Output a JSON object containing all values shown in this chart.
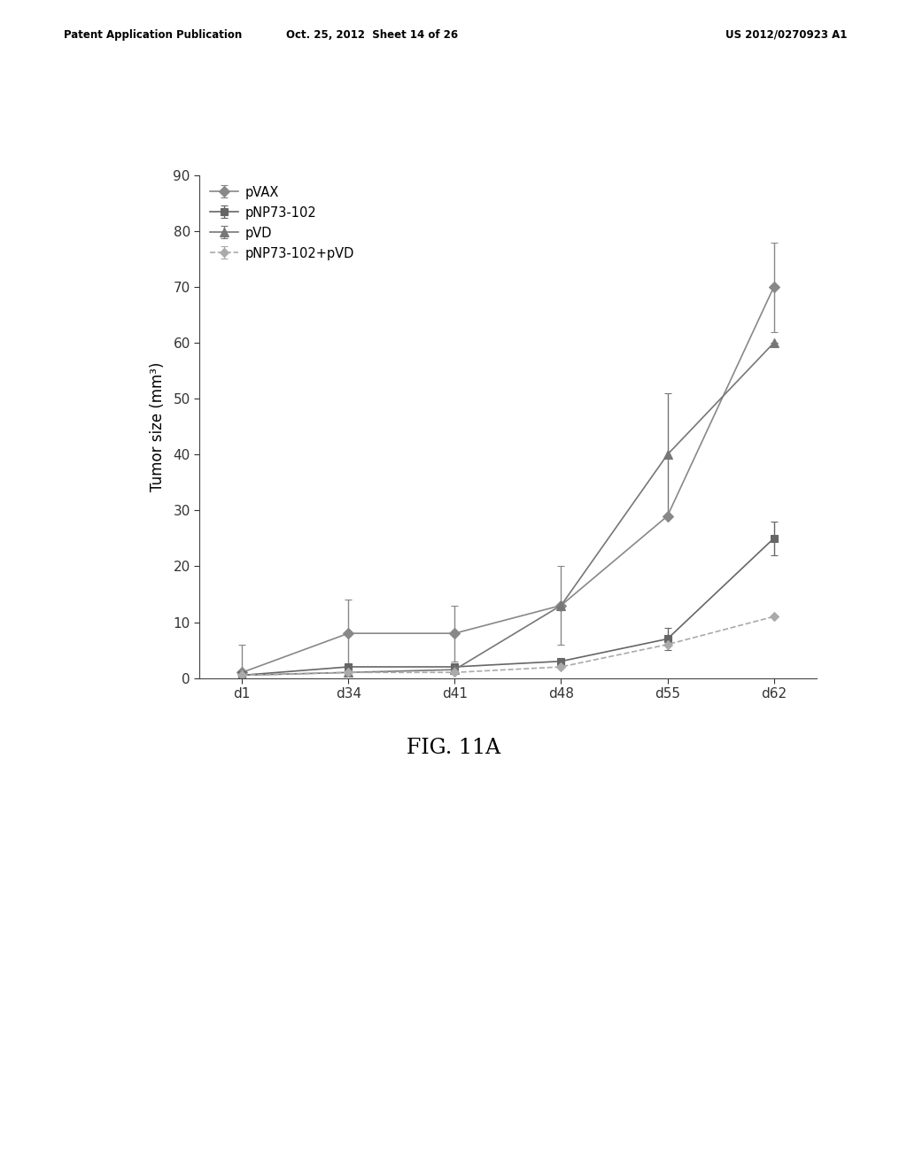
{
  "x_labels": [
    "d1",
    "d34",
    "d41",
    "d48",
    "d55",
    "d62"
  ],
  "x_positions": [
    0,
    1,
    2,
    3,
    4,
    5
  ],
  "series": [
    {
      "label": "pVAX",
      "y": [
        1,
        8,
        8,
        13,
        29,
        70
      ],
      "yerr": [
        5,
        6,
        5,
        7,
        0,
        8
      ],
      "color": "#888888",
      "marker": "D",
      "linestyle": "-",
      "markersize": 6
    },
    {
      "label": "pNP73-102",
      "y": [
        0.5,
        2,
        2,
        3,
        7,
        25
      ],
      "yerr": [
        0,
        0,
        0,
        0,
        2,
        3
      ],
      "color": "#666666",
      "marker": "s",
      "linestyle": "-",
      "markersize": 6
    },
    {
      "label": "pVD",
      "y": [
        0.5,
        1,
        1.5,
        13,
        40,
        60
      ],
      "yerr": [
        0,
        0,
        0,
        0,
        11,
        0
      ],
      "color": "#777777",
      "marker": "^",
      "linestyle": "-",
      "markersize": 7
    },
    {
      "label": "pNP73-102+pVD",
      "y": [
        0.5,
        1,
        1,
        2,
        6,
        11
      ],
      "yerr": [
        0,
        0,
        0,
        0,
        0,
        0
      ],
      "color": "#aaaaaa",
      "marker": "D",
      "linestyle": "--",
      "markersize": 5
    }
  ],
  "ylabel": "Tumor size (mm³)",
  "ylim": [
    0,
    90
  ],
  "yticks": [
    0,
    10,
    20,
    30,
    40,
    50,
    60,
    70,
    80,
    90
  ],
  "figure_caption": "FIG. 11A",
  "header_left": "Patent Application Publication",
  "header_center": "Oct. 25, 2012  Sheet 14 of 26",
  "header_right": "US 2012/0270923 A1",
  "bg_color": "#ffffff"
}
